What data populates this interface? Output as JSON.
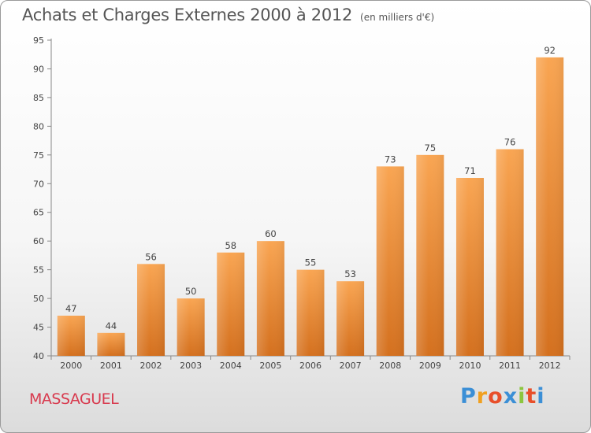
{
  "header": {
    "title": "Achats et Charges Externes 2000 à 2012",
    "subtitle": "(en milliers d'€)"
  },
  "footer": {
    "commune": "MASSAGUEL",
    "logo": {
      "letters": [
        "P",
        "r",
        "o",
        "x",
        "i",
        "t",
        "i"
      ],
      "colors": [
        "#3b8fd6",
        "#f0a020",
        "#e84f2a",
        "#3b8fd6",
        "#8cc63f",
        "#e84f2a",
        "#3b8fd6"
      ]
    }
  },
  "chart_data": {
    "type": "bar",
    "categories": [
      "2000",
      "2001",
      "2002",
      "2003",
      "2004",
      "2005",
      "2006",
      "2007",
      "2008",
      "2009",
      "2010",
      "2011",
      "2012"
    ],
    "values": [
      47,
      44,
      56,
      50,
      58,
      60,
      55,
      53,
      73,
      75,
      71,
      76,
      92
    ],
    "title": "Achats et Charges Externes 2000 à 2012",
    "ylim": [
      40,
      95
    ],
    "yticks": [
      40,
      45,
      50,
      55,
      60,
      65,
      70,
      75,
      80,
      85,
      90,
      95
    ],
    "grid": false,
    "colors": {
      "bar_top": "#f9a552",
      "bar_bottom": "#d4701e",
      "axis": "#888888"
    }
  }
}
